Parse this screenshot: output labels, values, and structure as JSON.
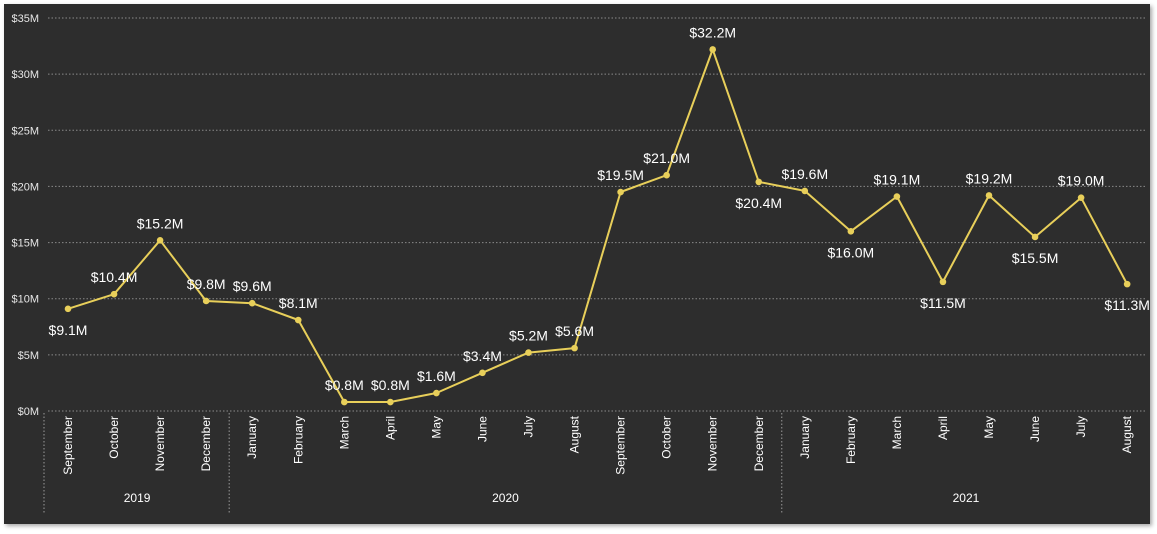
{
  "chart_data": {
    "type": "line",
    "color": "#e8cf5a",
    "background": "#2d2d2d",
    "grid": true,
    "ylim": [
      0,
      35
    ],
    "y_ticks": [
      {
        "value": 0,
        "label": "$0M"
      },
      {
        "value": 5,
        "label": "$5M"
      },
      {
        "value": 10,
        "label": "$10M"
      },
      {
        "value": 15,
        "label": "$15M"
      },
      {
        "value": 20,
        "label": "$20M"
      },
      {
        "value": 25,
        "label": "$25M"
      },
      {
        "value": 30,
        "label": "$30M"
      },
      {
        "value": 35,
        "label": "$35M"
      }
    ],
    "years": [
      {
        "label": "2019",
        "start": 0,
        "end": 3
      },
      {
        "label": "2020",
        "start": 4,
        "end": 15
      },
      {
        "label": "2021",
        "start": 16,
        "end": 23
      }
    ],
    "categories": [
      "September",
      "October",
      "November",
      "December",
      "January",
      "February",
      "March",
      "April",
      "May",
      "June",
      "July",
      "August",
      "September",
      "October",
      "November",
      "December",
      "January",
      "February",
      "March",
      "April",
      "May",
      "June",
      "July",
      "August"
    ],
    "values": [
      9.1,
      10.4,
      15.2,
      9.8,
      9.6,
      8.1,
      0.8,
      0.8,
      1.6,
      3.4,
      5.2,
      5.6,
      19.5,
      21.0,
      32.2,
      20.4,
      19.6,
      16.0,
      19.1,
      11.5,
      19.2,
      15.5,
      19.0,
      11.3
    ],
    "data_labels": [
      "$9.1M",
      "$10.4M",
      "$15.2M",
      "$9.8M",
      "$9.6M",
      "$8.1M",
      "$0.8M",
      "$0.8M",
      "$1.6M",
      "$3.4M",
      "$5.2M",
      "$5.6M",
      "$19.5M",
      "$21.0M",
      "$32.2M",
      "$20.4M",
      "$19.6M",
      "$16.0M",
      "$19.1M",
      "$11.5M",
      "$19.2M",
      "$15.5M",
      "$19.0M",
      "$11.3M"
    ]
  }
}
